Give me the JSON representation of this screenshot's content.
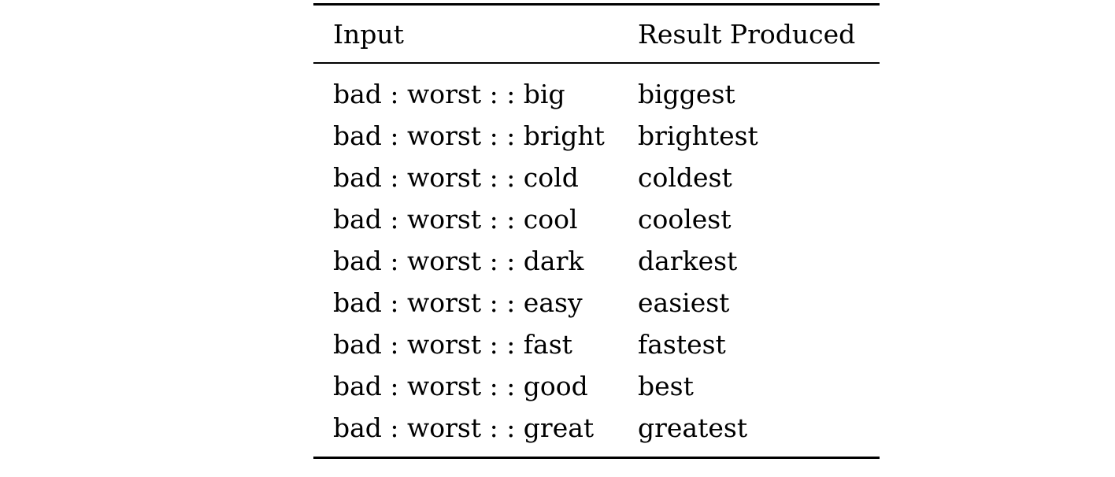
{
  "table": {
    "columns": [
      {
        "label": "Input"
      },
      {
        "label": "Result Produced"
      }
    ],
    "rows": [
      {
        "input": "bad : worst : : big",
        "result": "biggest"
      },
      {
        "input": "bad : worst : : bright",
        "result": "brightest"
      },
      {
        "input": "bad : worst : : cold",
        "result": "coldest"
      },
      {
        "input": "bad : worst : : cool",
        "result": "coolest"
      },
      {
        "input": "bad : worst : : dark",
        "result": "darkest"
      },
      {
        "input": "bad : worst : : easy",
        "result": "easiest"
      },
      {
        "input": "bad : worst : : fast",
        "result": "fastest"
      },
      {
        "input": "bad : worst : : good",
        "result": "best"
      },
      {
        "input": "bad : worst : : great",
        "result": "greatest"
      }
    ],
    "colors": {
      "text": "#000000",
      "rule": "#000000",
      "background": "#ffffff"
    }
  }
}
